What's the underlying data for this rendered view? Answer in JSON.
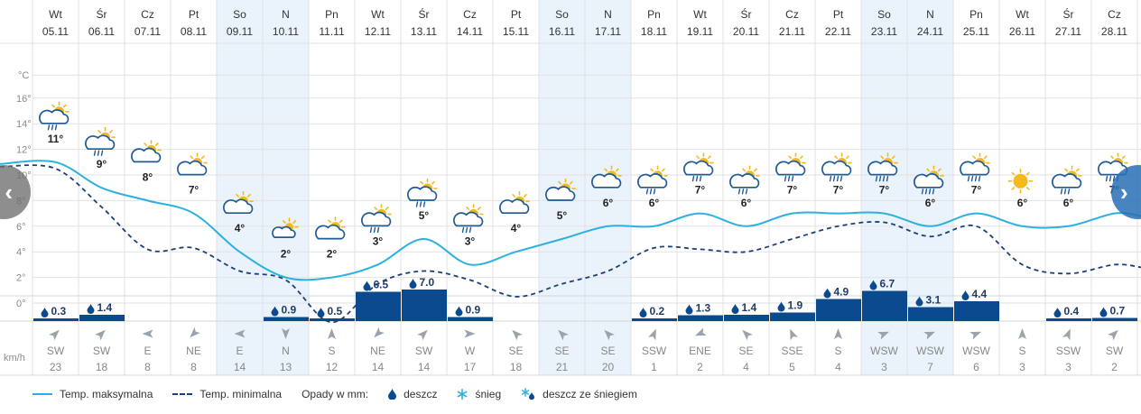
{
  "chart_data": {
    "type": "line",
    "days": [
      {
        "dow": "Wt",
        "date": "05.11",
        "tmax": 11,
        "tmin": 10.5,
        "precip": 0.3,
        "wind_dir": "SW",
        "wind_speed": 23,
        "icon": "partly-sunny-rain",
        "weekend": false
      },
      {
        "dow": "Śr",
        "date": "06.11",
        "tmax": 9,
        "tmin": 7.5,
        "precip": 1.4,
        "wind_dir": "SW",
        "wind_speed": 18,
        "icon": "partly-sunny-rain",
        "weekend": false
      },
      {
        "dow": "Cz",
        "date": "07.11",
        "tmax": 8,
        "tmin": 4.2,
        "precip": null,
        "wind_dir": "E",
        "wind_speed": 8,
        "icon": "partly-sunny",
        "weekend": false
      },
      {
        "dow": "Pt",
        "date": "08.11",
        "tmax": 7,
        "tmin": 4.3,
        "precip": null,
        "wind_dir": "NE",
        "wind_speed": 8,
        "icon": "partly-sunny",
        "weekend": false
      },
      {
        "dow": "So",
        "date": "09.11",
        "tmax": 4,
        "tmin": 2.5,
        "precip": null,
        "wind_dir": "E",
        "wind_speed": 14,
        "icon": "partly-sunny",
        "weekend": true
      },
      {
        "dow": "N",
        "date": "10.11",
        "tmax": 2,
        "tmin": 1.8,
        "precip": 0.9,
        "wind_dir": "N",
        "wind_speed": 13,
        "icon": "partly-sunny-small",
        "weekend": true
      },
      {
        "dow": "Pn",
        "date": "11.11",
        "tmax": 2,
        "tmin": -1.5,
        "precip": 0.5,
        "wind_dir": "S",
        "wind_speed": 12,
        "icon": "partly-sunny",
        "weekend": false
      },
      {
        "dow": "Wt",
        "date": "12.11",
        "tmax": 3,
        "tmin": 1.5,
        "precip": 6.5,
        "wind_dir": "NE",
        "wind_speed": 14,
        "icon": "partly-sunny-rain",
        "weekend": false
      },
      {
        "dow": "Śr",
        "date": "13.11",
        "tmax": 5,
        "tmin": 2.5,
        "precip": 7.0,
        "wind_dir": "SW",
        "wind_speed": 14,
        "icon": "partly-sunny-rain",
        "weekend": false
      },
      {
        "dow": "Cz",
        "date": "14.11",
        "tmax": 3,
        "tmin": 1.8,
        "precip": 0.9,
        "wind_dir": "W",
        "wind_speed": 17,
        "icon": "partly-sunny-rain",
        "weekend": false
      },
      {
        "dow": "Pt",
        "date": "15.11",
        "tmax": 4,
        "tmin": 0.5,
        "precip": null,
        "wind_dir": "SE",
        "wind_speed": 18,
        "icon": "partly-sunny",
        "weekend": false
      },
      {
        "dow": "So",
        "date": "16.11",
        "tmax": 5,
        "tmin": 1.5,
        "precip": null,
        "wind_dir": "SE",
        "wind_speed": 21,
        "icon": "partly-sunny",
        "weekend": true
      },
      {
        "dow": "N",
        "date": "17.11",
        "tmax": 6,
        "tmin": 2.5,
        "precip": null,
        "wind_dir": "SE",
        "wind_speed": 20,
        "icon": "partly-sunny",
        "weekend": true
      },
      {
        "dow": "Pn",
        "date": "18.11",
        "tmax": 6,
        "tmin": 4.3,
        "precip": 0.2,
        "wind_dir": "SSW",
        "wind_speed": 1,
        "icon": "partly-sunny-rain",
        "weekend": false
      },
      {
        "dow": "Wt",
        "date": "19.11",
        "tmax": 7,
        "tmin": 4.2,
        "precip": 1.3,
        "wind_dir": "ENE",
        "wind_speed": 2,
        "icon": "partly-sunny-rain",
        "weekend": false
      },
      {
        "dow": "Śr",
        "date": "20.11",
        "tmax": 6,
        "tmin": 4.0,
        "precip": 1.4,
        "wind_dir": "SE",
        "wind_speed": 4,
        "icon": "partly-sunny-rain",
        "weekend": false
      },
      {
        "dow": "Cz",
        "date": "21.11",
        "tmax": 7,
        "tmin": 5.0,
        "precip": 1.9,
        "wind_dir": "SSE",
        "wind_speed": 5,
        "icon": "partly-sunny-rain",
        "weekend": false
      },
      {
        "dow": "Pt",
        "date": "22.11",
        "tmax": 7,
        "tmin": 6.0,
        "precip": 4.9,
        "wind_dir": "S",
        "wind_speed": 4,
        "icon": "partly-sunny-rain-heavy",
        "weekend": false
      },
      {
        "dow": "So",
        "date": "23.11",
        "tmax": 7,
        "tmin": 6.3,
        "precip": 6.7,
        "wind_dir": "WSW",
        "wind_speed": 3,
        "icon": "partly-sunny-rain-heavy",
        "weekend": true
      },
      {
        "dow": "N",
        "date": "24.11",
        "tmax": 6,
        "tmin": 5.2,
        "precip": 3.1,
        "wind_dir": "WSW",
        "wind_speed": 7,
        "icon": "partly-sunny-rain-heavy",
        "weekend": true
      },
      {
        "dow": "Pn",
        "date": "25.11",
        "tmax": 7,
        "tmin": 6.0,
        "precip": 4.4,
        "wind_dir": "WSW",
        "wind_speed": 6,
        "icon": "partly-sunny-rain-heavy",
        "weekend": false
      },
      {
        "dow": "Wt",
        "date": "26.11",
        "tmax": 6,
        "tmin": 3.0,
        "precip": null,
        "wind_dir": "S",
        "wind_speed": 3,
        "icon": "sunny",
        "weekend": false
      },
      {
        "dow": "Śr",
        "date": "27.11",
        "tmax": 6,
        "tmin": 2.3,
        "precip": 0.4,
        "wind_dir": "SSW",
        "wind_speed": 3,
        "icon": "partly-sunny-rain",
        "weekend": false
      },
      {
        "dow": "Cz",
        "date": "28.11",
        "tmax": 7,
        "tmin": 3.0,
        "precip": 0.7,
        "wind_dir": "SW",
        "wind_speed": 2,
        "icon": "partly-sunny-rain-heavy",
        "weekend": false
      }
    ],
    "y_axis": {
      "unit": "°C",
      "ticks": [
        16,
        14,
        12,
        10,
        8,
        6,
        4,
        2,
        0
      ],
      "range": [
        0,
        17.8
      ]
    },
    "wind_unit": "km/h",
    "series": [
      {
        "name": "Temp. maksymalna",
        "key": "tmax",
        "color": "#2bb1e0",
        "style": "solid"
      },
      {
        "name": "Temp. minimalna",
        "key": "tmin",
        "color": "#1b3f7a",
        "style": "dashed"
      }
    ],
    "precip_scale_max": 7.0,
    "colors": {
      "bar": "#0b4a8f",
      "drop": "#0b4a8f",
      "weekend": "#eaf2fb",
      "grid": "#e2e2e2",
      "tick_text": "#8a8a8a",
      "sun": "#f5b81d",
      "cloud": "#1f5a96",
      "wind_arrow": "#9aa3ab"
    }
  },
  "legend": {
    "tmax_label": "Temp. maksymalna",
    "tmin_label": "Temp. minimalna",
    "precip_title": "Opady w mm:",
    "rain_label": "deszcz",
    "snow_label": "śnieg",
    "mixed_label": "deszcz ze śniegiem"
  },
  "nav": {
    "prev_icon": "chevron-left-icon",
    "next_icon": "chevron-right-icon",
    "prev_glyph": "‹",
    "next_glyph": "›"
  }
}
